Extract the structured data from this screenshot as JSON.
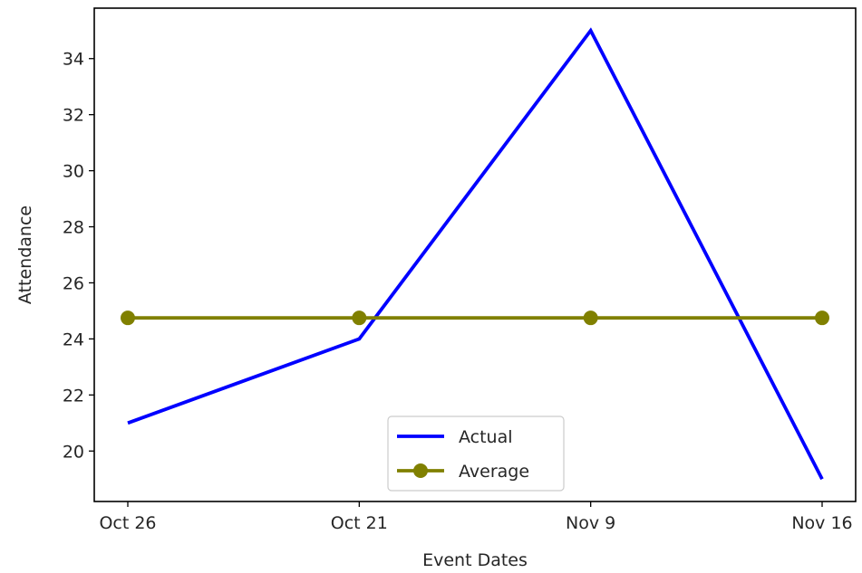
{
  "chart_data": {
    "type": "line",
    "categories": [
      "Oct 26",
      "Oct 21",
      "Nov 9",
      "Nov 16"
    ],
    "series": [
      {
        "name": "Actual",
        "values": [
          21,
          24,
          35,
          19
        ],
        "color": "#0000ff",
        "markers": false
      },
      {
        "name": "Average",
        "values": [
          24.75,
          24.75,
          24.75,
          24.75
        ],
        "color": "#808000",
        "markers": true
      }
    ],
    "xlabel": "Event Dates",
    "ylabel": "Attendance",
    "yticks": [
      20,
      22,
      24,
      26,
      28,
      30,
      32,
      34
    ],
    "ylim": [
      18.2,
      35.8
    ],
    "grid": false,
    "legend_position": "lower center"
  }
}
